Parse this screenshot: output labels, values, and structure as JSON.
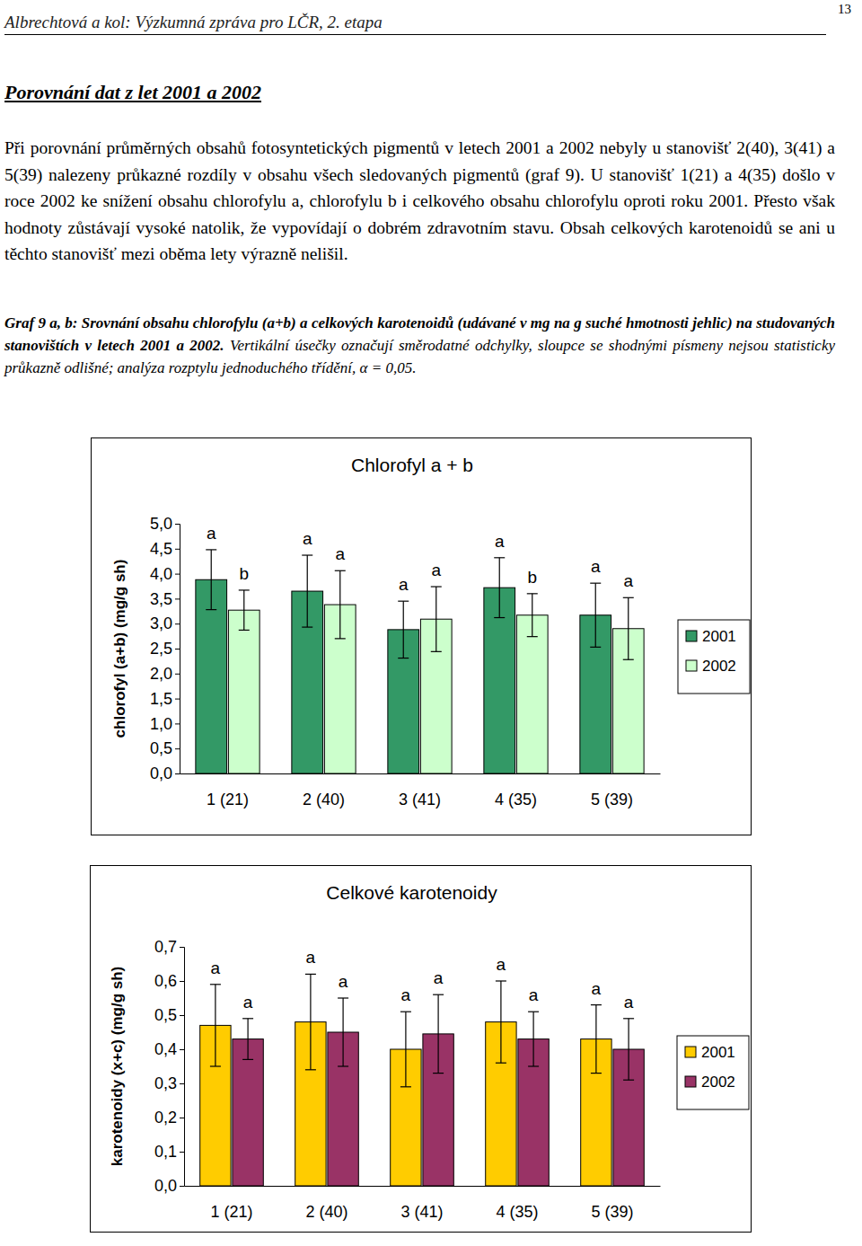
{
  "header": {
    "title": "Albrechtová a kol: Výzkumná zpráva pro LČR, 2. etapa",
    "page": "13"
  },
  "heading": "Porovnání dat z let 2001 a 2002",
  "paragraph": "Při porovnání průměrných obsahů fotosyntetických pigmentů v letech 2001 a 2002 nebyly u stanovišť 2(40), 3(41) a 5(39) nalezeny průkazné rozdíly v obsahu všech sledovaných pigmentů (graf 9). U stanovišť 1(21) a 4(35) došlo v roce 2002 ke snížení obsahu chlorofylu a, chlorofylu b i celkového obsahu chlorofylu oproti roku 2001. Přesto však hodnoty zůstávají vysoké natolik, že vypovídají o dobrém zdravotním stavu. Obsah celkových karotenoidů se ani u těchto stanovišť mezi oběma lety výrazně nelišil.",
  "caption": {
    "title": "Graf 9 a, b: Srovnání obsahu chlorofylu (a+b) a celkových karotenoidů (udávané v mg na g suché hmotnosti jehlic)  na studovaných stanovištích v letech 2001 a 2002.",
    "note": "Vertikální úsečky označují směrodatné odchylky, sloupce se shodnými písmeny nejsou statisticky průkazně odlišné; analýza rozptylu jednoduchého třídění, α = 0,05."
  },
  "chart_data": [
    {
      "type": "bar",
      "title": "Chlorofyl a + b",
      "ylabel": "chlorofyl (a+b) (mg/g sh)",
      "categories": [
        "1 (21)",
        "2 (40)",
        "3 (41)",
        "4 (35)",
        "5 (39)"
      ],
      "series": [
        {
          "name": "2001",
          "color": "#339966",
          "values": [
            3.88,
            3.65,
            2.88,
            3.72,
            3.17
          ],
          "errors": [
            0.6,
            0.72,
            0.57,
            0.6,
            0.64
          ],
          "letters": [
            "a",
            "a",
            "a",
            "a",
            "a"
          ]
        },
        {
          "name": "2002",
          "color": "#ccffcc",
          "values": [
            3.27,
            3.38,
            3.09,
            3.17,
            2.9
          ],
          "errors": [
            0.4,
            0.68,
            0.65,
            0.43,
            0.62
          ],
          "letters": [
            "b",
            "a",
            "a",
            "b",
            "a"
          ]
        }
      ],
      "ylim": [
        0,
        5
      ],
      "yticks": [
        {
          "value": 0,
          "label": "0,0"
        },
        {
          "value": 0.5,
          "label": "0,5"
        },
        {
          "value": 1,
          "label": "1,0"
        },
        {
          "value": 1.5,
          "label": "1,5"
        },
        {
          "value": 2,
          "label": "2,0"
        },
        {
          "value": 2.5,
          "label": "2,5"
        },
        {
          "value": 3,
          "label": "3,0"
        },
        {
          "value": 3.5,
          "label": "3,5"
        },
        {
          "value": 4,
          "label": "4,0"
        },
        {
          "value": 4.5,
          "label": "4,5"
        },
        {
          "value": 5,
          "label": "5,0"
        }
      ],
      "legend": "right",
      "grid": false
    },
    {
      "type": "bar",
      "title": "Celkové karotenoidy",
      "ylabel": "karotenoidy (x+c) (mg/g sh)",
      "categories": [
        "1 (21)",
        "2 (40)",
        "3 (41)",
        "4 (35)",
        "5 (39)"
      ],
      "series": [
        {
          "name": "2001",
          "color": "#ffcc00",
          "values": [
            0.47,
            0.48,
            0.4,
            0.48,
            0.43
          ],
          "errors": [
            0.12,
            0.14,
            0.11,
            0.12,
            0.1
          ],
          "letters": [
            "a",
            "a",
            "a",
            "a",
            "a"
          ]
        },
        {
          "name": "2002",
          "color": "#993366",
          "values": [
            0.43,
            0.45,
            0.445,
            0.43,
            0.4
          ],
          "errors": [
            0.06,
            0.1,
            0.115,
            0.08,
            0.09
          ],
          "letters": [
            "a",
            "a",
            "a",
            "a",
            "a"
          ]
        }
      ],
      "ylim": [
        0,
        0.7
      ],
      "yticks": [
        {
          "value": 0,
          "label": "0,0"
        },
        {
          "value": 0.1,
          "label": "0,1"
        },
        {
          "value": 0.2,
          "label": "0,2"
        },
        {
          "value": 0.3,
          "label": "0,3"
        },
        {
          "value": 0.4,
          "label": "0,4"
        },
        {
          "value": 0.5,
          "label": "0,5"
        },
        {
          "value": 0.6,
          "label": "0,6"
        },
        {
          "value": 0.7,
          "label": "0,7"
        }
      ],
      "legend": "right",
      "grid": false
    }
  ]
}
